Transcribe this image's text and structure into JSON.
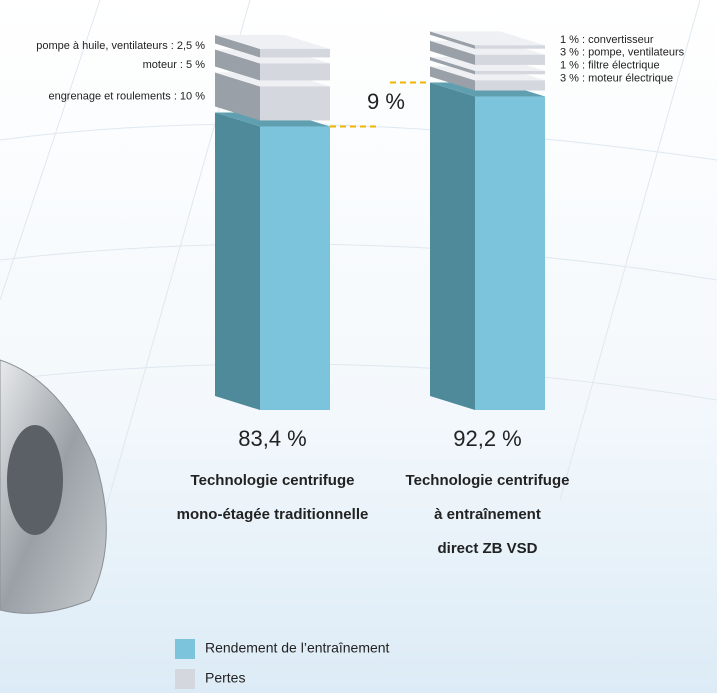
{
  "chart_data": {
    "type": "stacked-bar-3d",
    "categories": [
      [
        "Technologie centrifuge",
        "mono-étagée traditionnelle"
      ],
      [
        "Technologie centrifuge",
        "à entraînement",
        "direct ZB VSD"
      ]
    ],
    "efficiency": {
      "name": "Rendement de l’entraînement",
      "color": "#7cc4dc",
      "values": [
        83.4,
        92.2
      ],
      "value_labels": [
        "83,4 %",
        "92,2 %"
      ]
    },
    "losses": {
      "name": "Pertes",
      "color": "#d4d8de",
      "bars": [
        [
          {
            "label": "engrenage et roulements : 10 %",
            "value": 10
          },
          {
            "label": "moteur : 5 %",
            "value": 5
          },
          {
            "label": "pompe à huile, ventilateurs : 2,5 %",
            "value": 2.5
          }
        ],
        [
          {
            "label": "3 % : moteur électrique",
            "value": 3
          },
          {
            "label": "1 % : filtre électrique",
            "value": 1
          },
          {
            "label": "3 % : pompe, ventilateurs",
            "value": 3
          },
          {
            "label": "1 % : convertisseur",
            "value": 1
          }
        ]
      ]
    },
    "annotation": "9 %"
  }
}
